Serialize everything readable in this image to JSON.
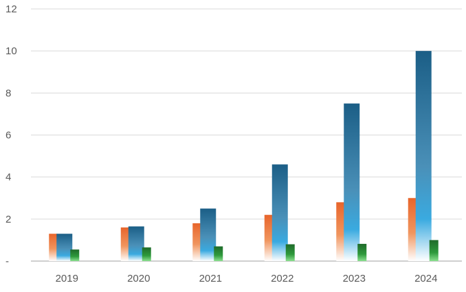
{
  "chart_data": {
    "type": "bar",
    "title": "",
    "xlabel": "",
    "ylabel": "",
    "categories": [
      "2019",
      "2020",
      "2021",
      "2022",
      "2023",
      "2024"
    ],
    "series": [
      {
        "values": [
          1.3,
          1.6,
          1.8,
          2.2,
          2.8,
          3.0
        ],
        "color": "#ED7D31"
      },
      {
        "values": [
          1.3,
          1.65,
          2.5,
          4.6,
          7.5,
          10.0
        ],
        "color": "#1F5F82"
      },
      {
        "values": [
          0.55,
          0.65,
          0.7,
          0.8,
          0.82,
          1.0
        ],
        "color": "#2E7D32"
      }
    ],
    "ylim": [
      0,
      12
    ],
    "yticks": [
      0,
      2,
      4,
      6,
      8,
      10,
      12
    ],
    "ytick_labels": [
      "-",
      "2",
      "4",
      "6",
      "8",
      "10",
      "12"
    ],
    "grid": true,
    "legend": "none"
  }
}
